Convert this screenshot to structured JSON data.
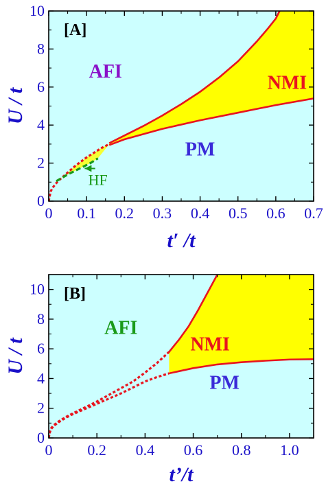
{
  "colors": {
    "background": "#ccffff",
    "nmi_fill": "#ffff00",
    "boundary": "#e8141e",
    "axis": "#1a10c8",
    "afi_label": "#8a10c8",
    "hf": "#1a9a1a",
    "pm_label": "#3a2ad8",
    "frame": "#000000"
  },
  "chart_data": [
    {
      "type": "area",
      "panel_label": "[A]",
      "xlabel": "t′ /t",
      "ylabel": "U / t",
      "xlim": [
        0,
        0.7
      ],
      "ylim": [
        0,
        10
      ],
      "xticks": [
        "0",
        "0.1",
        "0.2",
        "0.3",
        "0.4",
        "0.5",
        "0.6",
        "0.7"
      ],
      "yticks": [
        "0",
        "2",
        "4",
        "6",
        "8",
        "10"
      ],
      "regions": [
        {
          "label": "AFI",
          "x": 0.15,
          "y": 6.5
        },
        {
          "label": "NMI",
          "x": 0.63,
          "y": 5.9
        },
        {
          "label": "PM",
          "x": 0.4,
          "y": 2.4
        }
      ],
      "series": [
        {
          "name": "AFI–NMI boundary",
          "style": "solid",
          "x": [
            0.16,
            0.2,
            0.25,
            0.3,
            0.35,
            0.4,
            0.45,
            0.5,
            0.55,
            0.58,
            0.6,
            0.61
          ],
          "y": [
            3.05,
            3.45,
            3.95,
            4.5,
            5.1,
            5.75,
            6.5,
            7.35,
            8.4,
            9.1,
            9.6,
            10.0
          ]
        },
        {
          "name": "NMI–PM boundary",
          "style": "solid",
          "x": [
            0.16,
            0.2,
            0.3,
            0.4,
            0.5,
            0.6,
            0.7
          ],
          "y": [
            2.95,
            3.25,
            3.8,
            4.25,
            4.65,
            5.05,
            5.4
          ]
        },
        {
          "name": "first-order transition",
          "style": "dashed",
          "x": [
            0.0,
            0.005,
            0.01,
            0.02,
            0.03,
            0.05,
            0.07,
            0.1,
            0.12,
            0.14,
            0.16
          ],
          "y": [
            0.0,
            0.5,
            0.7,
            0.95,
            1.15,
            1.5,
            1.85,
            2.3,
            2.55,
            2.8,
            3.0
          ]
        },
        {
          "name": "HF",
          "style": "dashed",
          "x": [
            0.02,
            0.05,
            0.08,
            0.11,
            0.13
          ],
          "y": [
            1.05,
            1.4,
            1.7,
            2.0,
            2.25
          ]
        }
      ],
      "annotations": [
        {
          "text": "HF",
          "x": 0.13,
          "y": 0.85,
          "arrow_to": [
            0.095,
            1.72
          ]
        }
      ]
    },
    {
      "type": "area",
      "panel_label": "[B]",
      "xlabel": "t’/t",
      "ylabel": "U / t",
      "xlim": [
        0,
        1.1
      ],
      "ylim": [
        0,
        11
      ],
      "xticks": [
        "0",
        "0.2",
        "0.4",
        "0.6",
        "0.8",
        "1.0"
      ],
      "yticks": [
        "0",
        "2",
        "4",
        "6",
        "8",
        "10"
      ],
      "regions": [
        {
          "label": "AFI",
          "x": 0.3,
          "y": 7.0
        },
        {
          "label": "NMI",
          "x": 0.67,
          "y": 5.9
        },
        {
          "label": "PM",
          "x": 0.73,
          "y": 3.3
        }
      ],
      "series": [
        {
          "name": "AFI–NMI boundary",
          "style": "solid",
          "x": [
            0.5,
            0.54,
            0.58,
            0.62,
            0.66,
            0.7
          ],
          "y": [
            5.8,
            6.6,
            7.5,
            8.6,
            9.8,
            11.0
          ]
        },
        {
          "name": "NMI–PM boundary",
          "style": "solid",
          "x": [
            0.5,
            0.6,
            0.7,
            0.8,
            0.9,
            1.0,
            1.1
          ],
          "y": [
            4.35,
            4.7,
            4.95,
            5.1,
            5.2,
            5.28,
            5.3
          ]
        },
        {
          "name": "first-order transition (upper)",
          "style": "dashed",
          "x": [
            0.0,
            0.005,
            0.01,
            0.02,
            0.04,
            0.07,
            0.1,
            0.15,
            0.2,
            0.25,
            0.3,
            0.35,
            0.4,
            0.45,
            0.5
          ],
          "y": [
            0.0,
            0.45,
            0.65,
            0.85,
            1.1,
            1.4,
            1.65,
            2.05,
            2.45,
            2.9,
            3.35,
            3.8,
            4.4,
            5.05,
            5.8
          ]
        },
        {
          "name": "first-order transition (lower)",
          "style": "dashed",
          "x": [
            0.0,
            0.005,
            0.01,
            0.02,
            0.04,
            0.07,
            0.1,
            0.15,
            0.2,
            0.25,
            0.3,
            0.35,
            0.4,
            0.45,
            0.5
          ],
          "y": [
            0.0,
            0.4,
            0.6,
            0.8,
            1.05,
            1.35,
            1.6,
            1.95,
            2.3,
            2.65,
            3.0,
            3.4,
            3.8,
            4.1,
            4.35
          ]
        }
      ]
    }
  ]
}
